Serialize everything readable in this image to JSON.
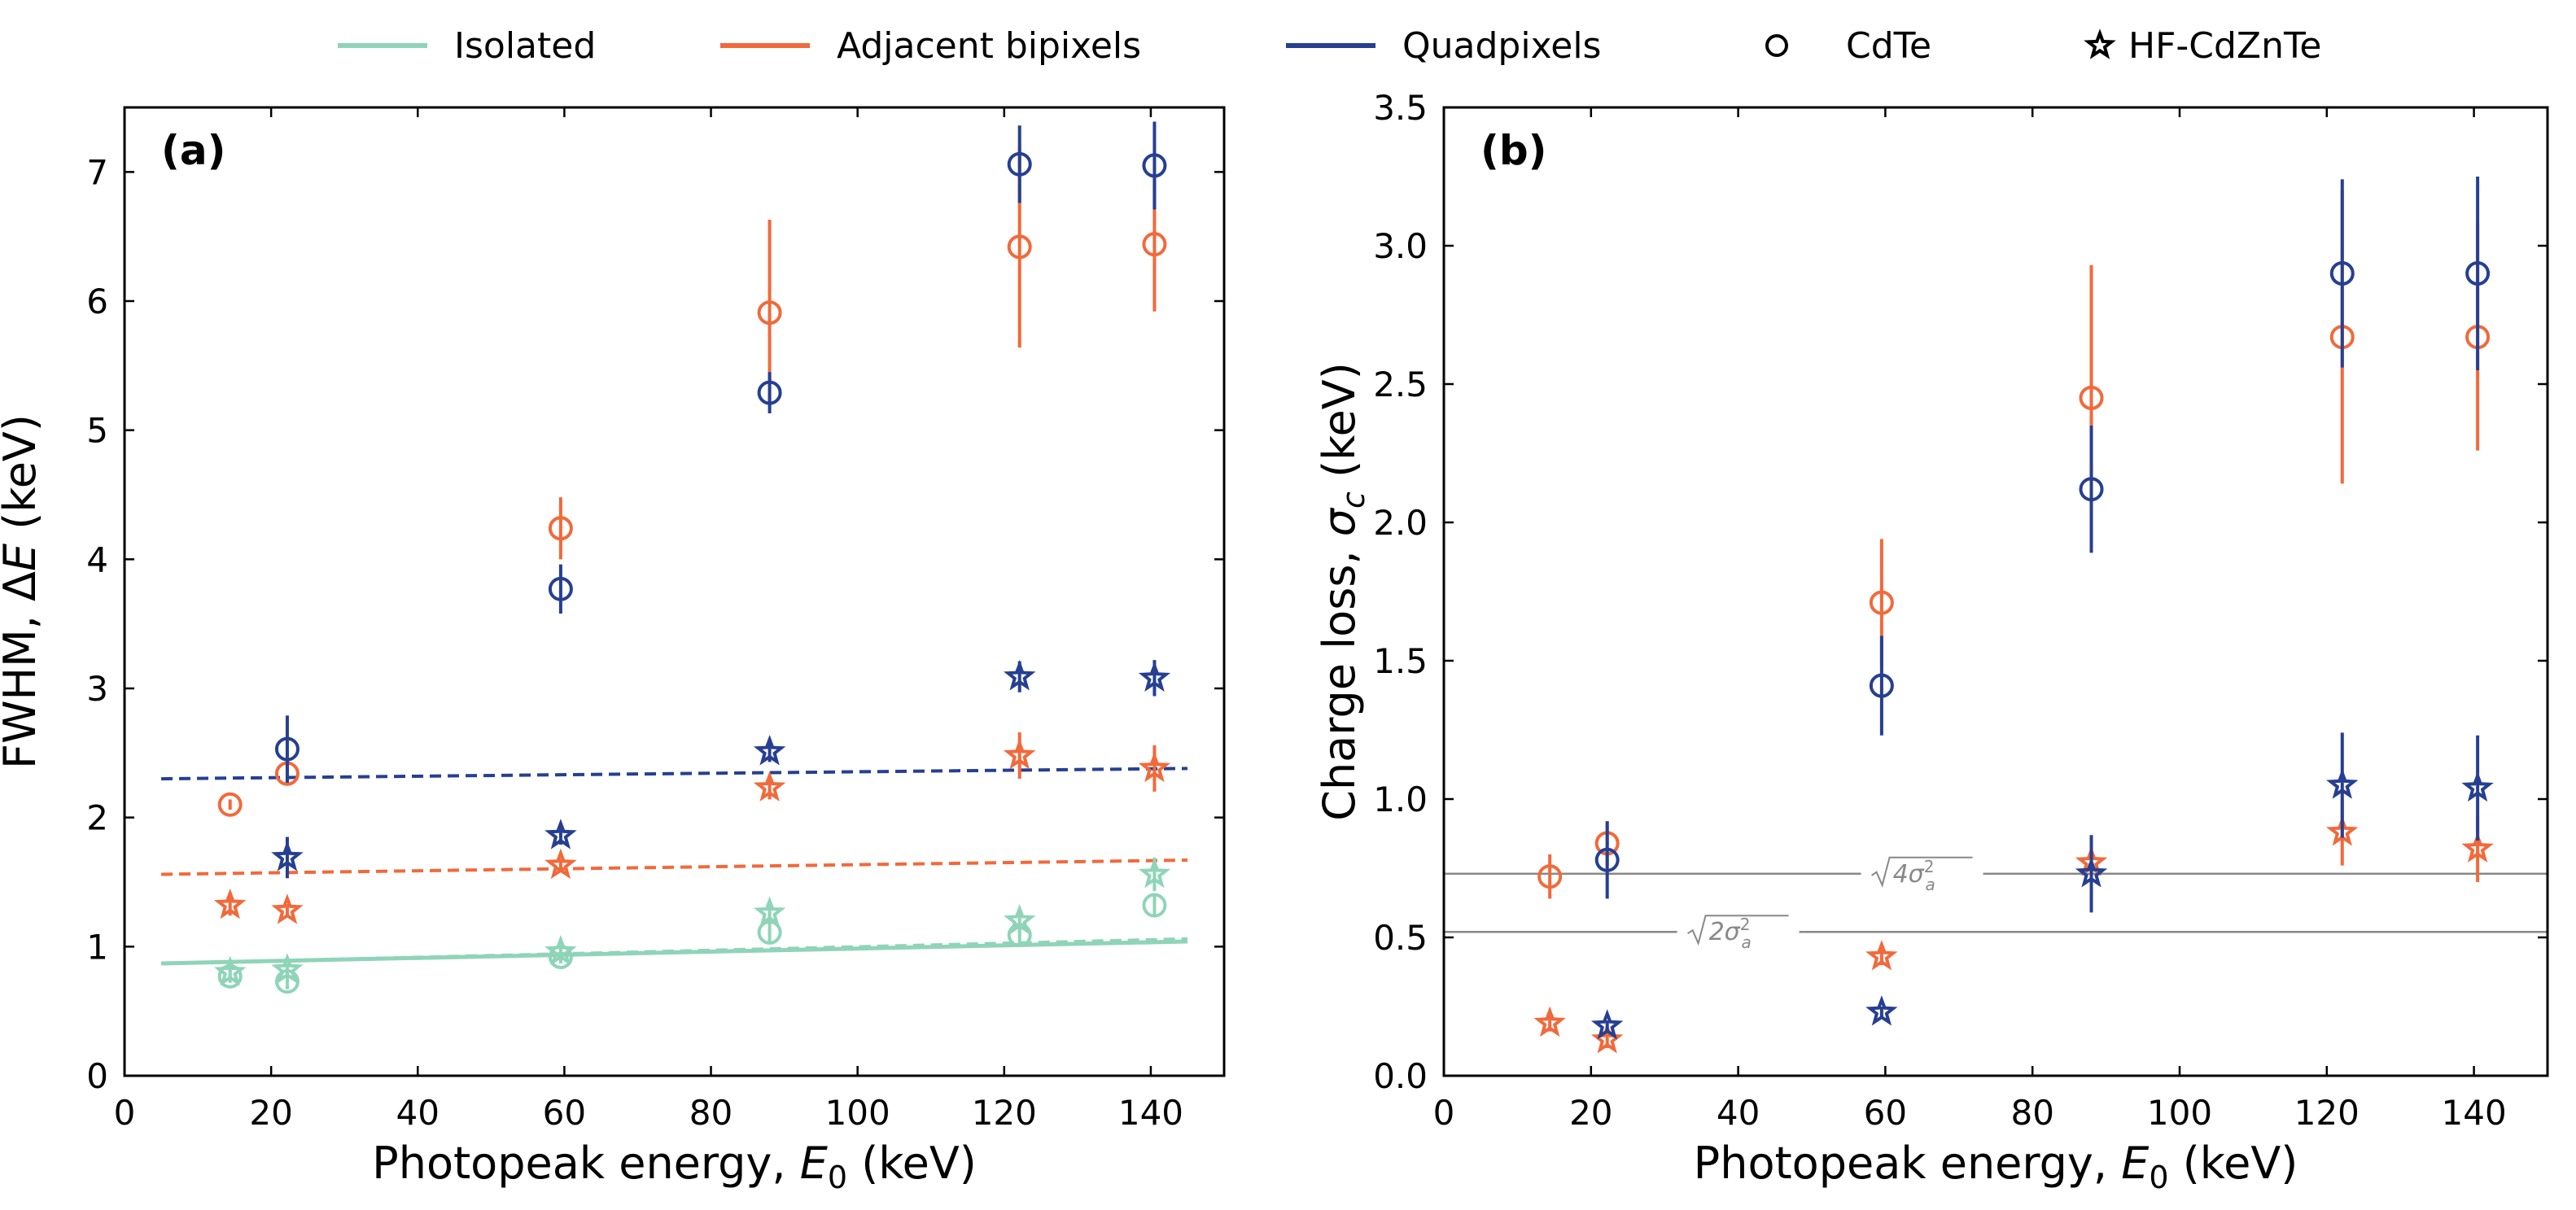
{
  "legend": {
    "entries": [
      {
        "label": "Isolated",
        "kind": "line",
        "color": "#8fd4b9"
      },
      {
        "label": "Adjacent bipixels",
        "kind": "line",
        "color": "#f2693a"
      },
      {
        "label": "Quadpixels",
        "kind": "line",
        "color": "#263f92"
      },
      {
        "label": "CdTe",
        "kind": "circle-marker",
        "color": "#000000"
      },
      {
        "label": "HF-CdZnTe",
        "kind": "star-marker",
        "color": "#000000"
      }
    ]
  },
  "colors": {
    "isolated": "#8fd4b9",
    "bipixels": "#f2693a",
    "quadpixels": "#263f92",
    "reference_line": "#888888"
  },
  "chart_data": [
    {
      "type": "scatter",
      "panel_label": "(a)",
      "xlabel_parts": {
        "prefix": "Photopeak energy, ",
        "var": "E",
        "sub": "0",
        "suffix": " (keV)"
      },
      "ylabel_parts": {
        "prefix": "FWHM, ",
        "greek": "Δ",
        "var": "E",
        "suffix": " (keV)"
      },
      "xlim": [
        0,
        150
      ],
      "ylim": [
        0,
        7.5
      ],
      "xticks": [
        "0",
        "20",
        "40",
        "60",
        "80",
        "100",
        "120",
        "140"
      ],
      "yticks": [
        "0",
        "1",
        "2",
        "3",
        "4",
        "5",
        "6",
        "7"
      ],
      "series": [
        {
          "name": "Isolated CdTe",
          "group": "isolated",
          "marker": "circle",
          "x": [
            14.4,
            22.2,
            59.5,
            88.0,
            122.1,
            140.5
          ],
          "y": [
            0.77,
            0.73,
            0.92,
            1.11,
            1.09,
            1.32
          ],
          "err": [
            0.05,
            0.06,
            0.05,
            0.07,
            0.07,
            0.09
          ]
        },
        {
          "name": "Isolated HF-CdZnTe",
          "group": "isolated",
          "marker": "star",
          "x": [
            14.4,
            22.2,
            59.5,
            88.0,
            122.1,
            140.5
          ],
          "y": [
            0.8,
            0.82,
            0.96,
            1.26,
            1.2,
            1.56
          ],
          "err": [
            0.05,
            0.05,
            0.05,
            0.09,
            0.09,
            0.13
          ]
        },
        {
          "name": "Adjacent bipixels CdTe",
          "group": "bipixels",
          "marker": "circle",
          "x": [
            14.4,
            22.2,
            59.5,
            88.0,
            122.1,
            140.5
          ],
          "y": [
            2.1,
            2.34,
            4.24,
            5.91,
            6.42,
            6.44
          ],
          "err": [
            0.04,
            0.08,
            0.24,
            0.72,
            0.78,
            0.52
          ]
        },
        {
          "name": "Adjacent bipixels HF-CdZnTe",
          "group": "bipixels",
          "marker": "star",
          "x": [
            14.4,
            22.2,
            59.5,
            88.0,
            122.1,
            140.5
          ],
          "y": [
            1.32,
            1.28,
            1.63,
            2.23,
            2.48,
            2.38
          ],
          "err": [
            0.08,
            0.05,
            0.05,
            0.09,
            0.18,
            0.18
          ]
        },
        {
          "name": "Quadpixels CdTe",
          "group": "quadpixels",
          "marker": "circle",
          "x": [
            22.2,
            59.5,
            88.0,
            122.1,
            140.5
          ],
          "y": [
            2.53,
            3.77,
            5.29,
            7.06,
            7.05
          ],
          "err": [
            0.26,
            0.19,
            0.16,
            0.3,
            0.34
          ]
        },
        {
          "name": "Quadpixels HF-CdZnTe",
          "group": "quadpixels",
          "marker": "star",
          "x": [
            22.2,
            59.5,
            88.0,
            122.1,
            140.5
          ],
          "y": [
            1.69,
            1.86,
            2.51,
            3.09,
            3.08
          ],
          "err": [
            0.16,
            0.07,
            0.08,
            0.12,
            0.14
          ]
        }
      ],
      "fit_lines": [
        {
          "name": "Isolated fit CdTe",
          "group": "isolated",
          "style": "solid",
          "x": [
            5,
            145
          ],
          "y": [
            0.87,
            1.04
          ]
        },
        {
          "name": "Isolated fit HF-CdZnTe",
          "group": "isolated",
          "style": "dashed",
          "x": [
            5,
            145
          ],
          "y": [
            0.87,
            1.06
          ]
        },
        {
          "name": "Adjacent bipixels fit",
          "group": "bipixels",
          "style": "dashed",
          "x": [
            5,
            145
          ],
          "y": [
            1.56,
            1.67
          ]
        },
        {
          "name": "Quadpixels fit",
          "group": "quadpixels",
          "style": "dashed",
          "x": [
            5,
            145
          ],
          "y": [
            2.3,
            2.38
          ]
        }
      ]
    },
    {
      "type": "scatter",
      "panel_label": "(b)",
      "xlabel_parts": {
        "prefix": "Photopeak energy, ",
        "var": "E",
        "sub": "0",
        "suffix": " (keV)"
      },
      "ylabel_parts": {
        "prefix": "Charge loss, ",
        "greek": "σ",
        "sub": "c",
        "suffix": " (keV)"
      },
      "xlim": [
        0,
        150
      ],
      "ylim": [
        0,
        3.5
      ],
      "xticks": [
        "0",
        "20",
        "40",
        "60",
        "80",
        "100",
        "120",
        "140"
      ],
      "yticks": [
        "0.0",
        "0.5",
        "1.0",
        "1.5",
        "2.0",
        "2.5",
        "3.0",
        "3.5"
      ],
      "series": [
        {
          "name": "Adjacent bipixels CdTe",
          "group": "bipixels",
          "marker": "circle",
          "x": [
            14.4,
            22.2,
            59.5,
            88.0,
            122.1,
            140.5
          ],
          "y": [
            0.72,
            0.84,
            1.71,
            2.45,
            2.67,
            2.67
          ],
          "err": [
            0.08,
            0.08,
            0.23,
            0.48,
            0.53,
            0.41
          ]
        },
        {
          "name": "Adjacent bipixels HF-CdZnTe",
          "group": "bipixels",
          "marker": "star",
          "x": [
            14.4,
            22.2,
            59.5,
            88.0,
            122.1,
            140.5
          ],
          "y": [
            0.19,
            0.13,
            0.43,
            0.77,
            0.88,
            0.82
          ],
          "err": [
            0.03,
            0.03,
            0.03,
            0.05,
            0.12,
            0.12
          ]
        },
        {
          "name": "Quadpixels CdTe",
          "group": "quadpixels",
          "marker": "circle",
          "x": [
            22.2,
            59.5,
            88.0,
            122.1,
            140.5
          ],
          "y": [
            0.78,
            1.41,
            2.12,
            2.9,
            2.9
          ],
          "err": [
            0.14,
            0.18,
            0.23,
            0.34,
            0.35
          ]
        },
        {
          "name": "Quadpixels HF-CdZnTe",
          "group": "quadpixels",
          "marker": "star",
          "x": [
            22.2,
            59.5,
            88.0,
            122.1,
            140.5
          ],
          "y": [
            0.18,
            0.23,
            0.73,
            1.05,
            1.04
          ],
          "err": [
            0.02,
            0.02,
            0.14,
            0.19,
            0.19
          ]
        }
      ],
      "reference_lines": [
        {
          "y": 0.73,
          "label_inner": "4σ",
          "label_sub": "a",
          "label_sup": "2",
          "label_x": 65
        },
        {
          "y": 0.52,
          "label_inner": "2σ",
          "label_sub": "a",
          "label_sup": "2",
          "label_x": 40
        }
      ]
    }
  ]
}
